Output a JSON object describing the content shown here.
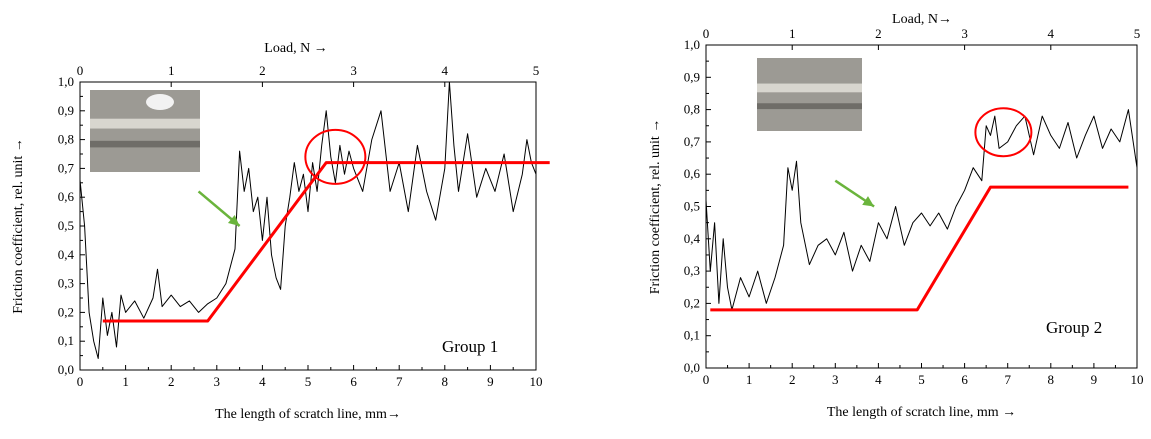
{
  "chart_data": [
    {
      "type": "line",
      "xlabel": "The length of scratch line, mm→",
      "ylabel": "Friction coefficient, rel. unit →",
      "top_xlabel": "Load, N →",
      "annotation": "Group 1",
      "xlim": [
        0,
        10
      ],
      "ylim": [
        0,
        1.0
      ],
      "top_xlim": [
        0,
        5
      ],
      "x_ticks": [
        0,
        1,
        2,
        3,
        4,
        5,
        6,
        7,
        8,
        9,
        10
      ],
      "x_tick_labels": [
        "0",
        "1",
        "2",
        "3",
        "4",
        "5",
        "6",
        "7",
        "8",
        "9",
        "10"
      ],
      "y_ticks": [
        0,
        0.1,
        0.2,
        0.3,
        0.4,
        0.5,
        0.6,
        0.7,
        0.8,
        0.9,
        1.0
      ],
      "y_tick_labels": [
        "0,0",
        "0,1",
        "0,2",
        "0,3",
        "0,4",
        "0,5",
        "0,6",
        "0,7",
        "0,8",
        "0,9",
        "1,0"
      ],
      "top_ticks": [
        0,
        1,
        2,
        3,
        4,
        5
      ],
      "top_tick_labels": [
        "0",
        "1",
        "2",
        "3",
        "4",
        "5"
      ],
      "grid": false,
      "series": [
        {
          "role": "measured",
          "color": "#000000",
          "x": [
            0,
            0.1,
            0.2,
            0.3,
            0.4,
            0.5,
            0.6,
            0.7,
            0.8,
            0.9,
            1.0,
            1.2,
            1.4,
            1.6,
            1.7,
            1.8,
            2.0,
            2.2,
            2.4,
            2.6,
            2.8,
            3.0,
            3.2,
            3.4,
            3.5,
            3.6,
            3.7,
            3.8,
            3.9,
            4.0,
            4.1,
            4.2,
            4.3,
            4.4,
            4.5,
            4.6,
            4.7,
            4.8,
            4.9,
            5.0,
            5.1,
            5.2,
            5.3,
            5.4,
            5.5,
            5.6,
            5.7,
            5.8,
            5.9,
            6.0,
            6.2,
            6.4,
            6.6,
            6.8,
            7.0,
            7.2,
            7.4,
            7.6,
            7.8,
            8.0,
            8.1,
            8.2,
            8.3,
            8.5,
            8.7,
            8.9,
            9.1,
            9.3,
            9.5,
            9.7,
            9.8,
            9.9,
            10.0
          ],
          "y": [
            0.66,
            0.5,
            0.2,
            0.1,
            0.04,
            0.25,
            0.12,
            0.2,
            0.08,
            0.26,
            0.2,
            0.24,
            0.18,
            0.25,
            0.35,
            0.22,
            0.26,
            0.22,
            0.24,
            0.2,
            0.23,
            0.25,
            0.3,
            0.42,
            0.76,
            0.62,
            0.7,
            0.55,
            0.6,
            0.45,
            0.6,
            0.4,
            0.32,
            0.28,
            0.5,
            0.6,
            0.72,
            0.62,
            0.68,
            0.55,
            0.72,
            0.62,
            0.78,
            0.9,
            0.74,
            0.65,
            0.78,
            0.68,
            0.76,
            0.7,
            0.62,
            0.8,
            0.9,
            0.62,
            0.72,
            0.55,
            0.78,
            0.62,
            0.52,
            0.7,
            1.0,
            0.78,
            0.62,
            0.82,
            0.6,
            0.7,
            0.62,
            0.75,
            0.55,
            0.68,
            0.8,
            0.72,
            0.68
          ]
        },
        {
          "role": "trend",
          "color": "#ff0000",
          "x": [
            0.5,
            2.8,
            5.4,
            10.3
          ],
          "y": [
            0.17,
            0.17,
            0.72,
            0.72
          ]
        }
      ],
      "markers": {
        "circle_center": [
          5.6,
          0.74
        ],
        "arrow_from": [
          2.6,
          0.62
        ],
        "arrow_to": [
          3.5,
          0.5
        ]
      }
    },
    {
      "type": "line",
      "xlabel": "The length of scratch line, mm →",
      "ylabel": "Friction coefficient, rel. unit →",
      "top_xlabel": "Load, N→",
      "annotation": "Group 2",
      "xlim": [
        0,
        10
      ],
      "ylim": [
        0,
        1.0
      ],
      "top_xlim": [
        0,
        5
      ],
      "x_ticks": [
        0,
        1,
        2,
        3,
        4,
        5,
        6,
        7,
        8,
        9,
        10
      ],
      "x_tick_labels": [
        "0",
        "1",
        "2",
        "3",
        "4",
        "5",
        "6",
        "7",
        "8",
        "9",
        "10"
      ],
      "y_ticks": [
        0,
        0.1,
        0.2,
        0.3,
        0.4,
        0.5,
        0.6,
        0.7,
        0.8,
        0.9,
        1.0
      ],
      "y_tick_labels": [
        "0,0",
        "0,1",
        "0,2",
        "0,3",
        "0,4",
        "0,5",
        "0,6",
        "0,7",
        "0,8",
        "0,9",
        "1,0"
      ],
      "top_ticks": [
        0,
        1,
        2,
        3,
        4,
        5
      ],
      "top_tick_labels": [
        "0",
        "1",
        "2",
        "3",
        "4",
        "5"
      ],
      "grid": false,
      "series": [
        {
          "role": "measured",
          "color": "#000000",
          "x": [
            0,
            0.1,
            0.2,
            0.3,
            0.4,
            0.5,
            0.6,
            0.8,
            1.0,
            1.2,
            1.4,
            1.6,
            1.8,
            1.9,
            2.0,
            2.1,
            2.2,
            2.4,
            2.6,
            2.8,
            3.0,
            3.2,
            3.4,
            3.6,
            3.8,
            4.0,
            4.2,
            4.4,
            4.6,
            4.8,
            5.0,
            5.2,
            5.4,
            5.6,
            5.8,
            6.0,
            6.2,
            6.4,
            6.5,
            6.6,
            6.7,
            6.8,
            7.0,
            7.2,
            7.4,
            7.6,
            7.8,
            8.0,
            8.2,
            8.4,
            8.6,
            8.8,
            9.0,
            9.2,
            9.4,
            9.6,
            9.8,
            10.0
          ],
          "y": [
            0.52,
            0.3,
            0.45,
            0.2,
            0.4,
            0.25,
            0.18,
            0.28,
            0.22,
            0.3,
            0.2,
            0.28,
            0.38,
            0.62,
            0.55,
            0.64,
            0.45,
            0.32,
            0.38,
            0.4,
            0.35,
            0.42,
            0.3,
            0.38,
            0.33,
            0.45,
            0.4,
            0.5,
            0.38,
            0.45,
            0.48,
            0.44,
            0.48,
            0.43,
            0.5,
            0.55,
            0.62,
            0.58,
            0.75,
            0.72,
            0.78,
            0.68,
            0.7,
            0.75,
            0.78,
            0.66,
            0.78,
            0.72,
            0.68,
            0.76,
            0.65,
            0.72,
            0.78,
            0.68,
            0.74,
            0.7,
            0.8,
            0.62
          ],
          "note": ""
        },
        {
          "role": "trend",
          "color": "#ff0000",
          "x": [
            0.1,
            4.9,
            6.6,
            9.8
          ],
          "y": [
            0.18,
            0.18,
            0.56,
            0.56
          ]
        }
      ],
      "markers": {
        "circle_center": [
          6.9,
          0.73
        ],
        "arrow_from": [
          3.0,
          0.58
        ],
        "arrow_to": [
          3.9,
          0.5
        ]
      }
    }
  ]
}
